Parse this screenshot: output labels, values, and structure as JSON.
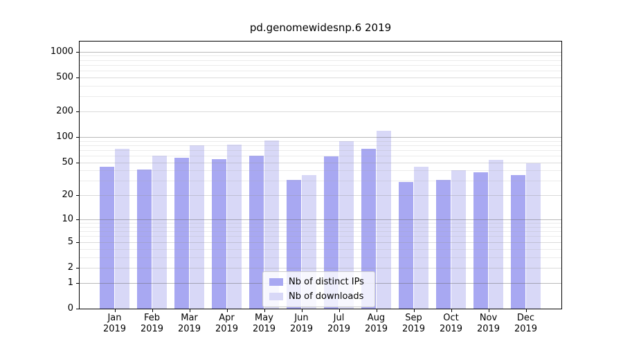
{
  "title": "pd.genomewidesnp.6 2019",
  "chart_data": {
    "type": "bar",
    "title": "pd.genomewidesnp.6 2019",
    "categories": [
      "Jan 2019",
      "Feb 2019",
      "Mar 2019",
      "Apr 2019",
      "May 2019",
      "Jun 2019",
      "Jul 2019",
      "Aug 2019",
      "Sep 2019",
      "Oct 2019",
      "Nov 2019",
      "Dec 2019"
    ],
    "x_tick_month": [
      "Jan",
      "Feb",
      "Mar",
      "Apr",
      "May",
      "Jun",
      "Jul",
      "Aug",
      "Sep",
      "Oct",
      "Nov",
      "Dec"
    ],
    "x_tick_year": "2019",
    "series": [
      {
        "name": "Nb of distinct IPs",
        "color": "#a8a8f2",
        "values": [
          44,
          41,
          57,
          55,
          60,
          31,
          59,
          72,
          29,
          31,
          38,
          35
        ]
      },
      {
        "name": "Nb of downloads",
        "color": "#d8d8f7",
        "values": [
          73,
          60,
          80,
          81,
          91,
          35,
          89,
          119,
          44,
          40,
          54,
          49
        ]
      }
    ],
    "y_ticks": [
      0,
      1,
      2,
      5,
      10,
      20,
      50,
      100,
      200,
      500,
      1000
    ],
    "y_tick_labels": [
      "0",
      "1",
      "2",
      "5",
      "10",
      "20",
      "50",
      "100",
      "200",
      "500",
      "1000"
    ],
    "y_scale": "log1p",
    "ylim": [
      0,
      1325
    ],
    "xlabel": "",
    "ylabel": "",
    "grid": true,
    "legend_position": "lower center",
    "colors": {
      "bar_distinct_ips": "#a8a8f2",
      "bar_downloads": "#d8d8f7",
      "major_gridline": "#b9b9b9",
      "mid_gridline": "#dedede",
      "minor_gridline": "#ececec",
      "spine": "#000000",
      "text": "#000000"
    }
  }
}
